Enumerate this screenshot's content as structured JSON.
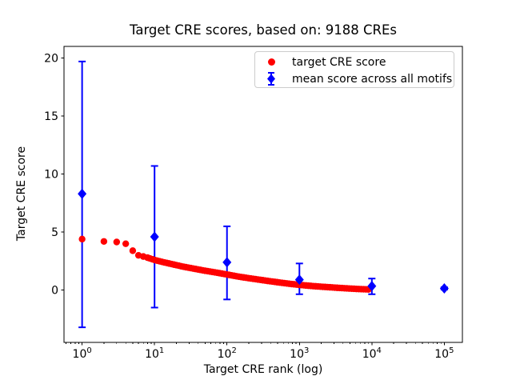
{
  "chart_data": {
    "type": "scatter",
    "title": "Target CRE scores, based on: 9188 CREs",
    "xlabel": "Target CRE rank (log)",
    "ylabel": "Target CRE score",
    "frame_color": "#000000",
    "grid": false,
    "x_axis": {
      "scale": "log",
      "lim_log10": [
        -0.25,
        5.25
      ],
      "tick_exponents": [
        0,
        1,
        2,
        3,
        4,
        5
      ],
      "tick_base": "10"
    },
    "y_axis": {
      "scale": "linear",
      "lim": [
        -4.5,
        21.0
      ],
      "ticks": [
        0,
        5,
        10,
        15,
        20
      ]
    },
    "legend": {
      "location": "upper right"
    },
    "series": [
      {
        "name": "target CRE score",
        "marker": "circle",
        "color": "#ff0000",
        "note": "score vs rank for 9188 CREs; dense overlapping dots form a band; anchor points sampled from plot",
        "points": [
          [
            1,
            4.4
          ],
          [
            2,
            4.2
          ],
          [
            3,
            4.15
          ],
          [
            4,
            4.0
          ],
          [
            5,
            3.4
          ],
          [
            6,
            3.0
          ],
          [
            7,
            2.9
          ],
          [
            8,
            2.8
          ],
          [
            10,
            2.6
          ],
          [
            13,
            2.42
          ],
          [
            18,
            2.22
          ],
          [
            25,
            2.02
          ],
          [
            35,
            1.85
          ],
          [
            50,
            1.67
          ],
          [
            70,
            1.52
          ],
          [
            100,
            1.35
          ],
          [
            140,
            1.18
          ],
          [
            200,
            1.03
          ],
          [
            280,
            0.9
          ],
          [
            400,
            0.76
          ],
          [
            560,
            0.64
          ],
          [
            800,
            0.52
          ],
          [
            1100,
            0.43
          ],
          [
            1600,
            0.34
          ],
          [
            2200,
            0.28
          ],
          [
            3200,
            0.21
          ],
          [
            4600,
            0.15
          ],
          [
            6400,
            0.1
          ],
          [
            9188,
            0.06
          ]
        ]
      },
      {
        "name": "mean score across all motifs",
        "marker": "diamond",
        "color": "#0000ff",
        "error_bars": true,
        "points": [
          {
            "rank": 1,
            "mean": 8.3,
            "low": -3.2,
            "high": 19.7
          },
          {
            "rank": 10,
            "mean": 4.6,
            "low": -1.5,
            "high": 10.7
          },
          {
            "rank": 100,
            "mean": 2.4,
            "low": -0.8,
            "high": 5.5
          },
          {
            "rank": 1000,
            "mean": 0.9,
            "low": -0.35,
            "high": 2.3
          },
          {
            "rank": 10000,
            "mean": 0.35,
            "low": -0.35,
            "high": 1.0
          },
          {
            "rank": 100000,
            "mean": 0.15,
            "low": 0.05,
            "high": 0.25
          }
        ]
      }
    ]
  }
}
